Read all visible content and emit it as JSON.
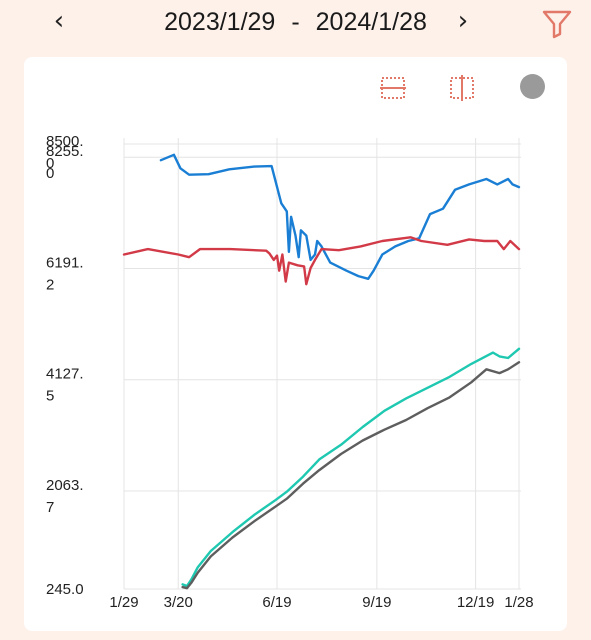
{
  "header": {
    "start_date": "2023/1/29",
    "separator": "-",
    "end_date": "2024/1/28",
    "prev_icon": "chevron-left-icon",
    "next_icon": "chevron-right-icon",
    "filter_icon": "filter-icon"
  },
  "toolbar": {
    "horizontal_tool_icon": "horizontal-crosshair-icon",
    "vertical_tool_icon": "vertical-crosshair-icon",
    "more_icon": "circle-icon"
  },
  "colors": {
    "accent": "#e27868",
    "blue": "#1a7fd4",
    "red": "#d23a48",
    "teal": "#1fc8b1",
    "gray": "#5e5e5e",
    "background": "#fdf1ea"
  },
  "chart_data": {
    "type": "line",
    "grid": true,
    "y_ticks": [
      {
        "line1": "245.0",
        "line2": "",
        "value": 245.0
      },
      {
        "line1": "2063.",
        "line2": "7",
        "value": 2063.7
      },
      {
        "line1": "4127.",
        "line2": "5",
        "value": 4127.5
      },
      {
        "line1": "6191.",
        "line2": "2",
        "value": 6191.2
      },
      {
        "line1": "8255.",
        "line2": "0",
        "value": 8255.0
      },
      {
        "line1": "8500.",
        "line2": "0",
        "value": 8500.0
      }
    ],
    "ylim": [
      245.0,
      8500.0
    ],
    "x_ticks": [
      {
        "label": "1/29",
        "day": 0
      },
      {
        "label": "3/20",
        "day": 50
      },
      {
        "label": "6/19",
        "day": 141
      },
      {
        "label": "9/19",
        "day": 233
      },
      {
        "label": "12/19",
        "day": 324
      },
      {
        "label": "1/28",
        "day": 364
      }
    ],
    "xlim": [
      0,
      364
    ],
    "series": [
      {
        "color": "#1a7fd4",
        "points": [
          [
            34,
            8200
          ],
          [
            46,
            8300
          ],
          [
            52,
            8050
          ],
          [
            60,
            7930
          ],
          [
            78,
            7940
          ],
          [
            97,
            8030
          ],
          [
            120,
            8080
          ],
          [
            136,
            8090
          ],
          [
            145,
            7400
          ],
          [
            150,
            7250
          ],
          [
            152,
            6500
          ],
          [
            154,
            7150
          ],
          [
            158,
            6800
          ],
          [
            161,
            6400
          ],
          [
            163,
            6900
          ],
          [
            168,
            6800
          ],
          [
            172,
            6350
          ],
          [
            176,
            6450
          ],
          [
            178,
            6700
          ],
          [
            182,
            6600
          ],
          [
            190,
            6300
          ],
          [
            205,
            6150
          ],
          [
            216,
            6050
          ],
          [
            225,
            6000
          ],
          [
            230,
            6150
          ],
          [
            238,
            6450
          ],
          [
            250,
            6600
          ],
          [
            262,
            6700
          ],
          [
            272,
            6750
          ],
          [
            282,
            7200
          ],
          [
            294,
            7300
          ],
          [
            305,
            7650
          ],
          [
            318,
            7750
          ],
          [
            334,
            7850
          ],
          [
            344,
            7750
          ],
          [
            354,
            7850
          ],
          [
            358,
            7750
          ],
          [
            364,
            7700
          ]
        ]
      },
      {
        "color": "#d23a48",
        "points": [
          [
            0,
            6450
          ],
          [
            22,
            6550
          ],
          [
            50,
            6450
          ],
          [
            60,
            6400
          ],
          [
            70,
            6550
          ],
          [
            98,
            6550
          ],
          [
            131,
            6520
          ],
          [
            134,
            6470
          ],
          [
            138,
            6350
          ],
          [
            141,
            6430
          ],
          [
            143,
            6150
          ],
          [
            146,
            6450
          ],
          [
            149,
            5950
          ],
          [
            152,
            6300
          ],
          [
            160,
            6250
          ],
          [
            166,
            6230
          ],
          [
            168,
            5900
          ],
          [
            172,
            6200
          ],
          [
            176,
            6350
          ],
          [
            182,
            6550
          ],
          [
            198,
            6530
          ],
          [
            218,
            6600
          ],
          [
            238,
            6700
          ],
          [
            264,
            6770
          ],
          [
            274,
            6700
          ],
          [
            298,
            6630
          ],
          [
            318,
            6730
          ],
          [
            332,
            6700
          ],
          [
            344,
            6700
          ],
          [
            350,
            6550
          ],
          [
            356,
            6700
          ],
          [
            364,
            6550
          ]
        ]
      },
      {
        "color": "#1fc8b1",
        "points": [
          [
            54,
            330
          ],
          [
            58,
            300
          ],
          [
            62,
            420
          ],
          [
            68,
            650
          ],
          [
            80,
            950
          ],
          [
            100,
            1300
          ],
          [
            120,
            1620
          ],
          [
            140,
            1900
          ],
          [
            150,
            2050
          ],
          [
            165,
            2330
          ],
          [
            180,
            2650
          ],
          [
            200,
            2920
          ],
          [
            220,
            3250
          ],
          [
            240,
            3550
          ],
          [
            260,
            3780
          ],
          [
            280,
            3980
          ],
          [
            300,
            4180
          ],
          [
            320,
            4420
          ],
          [
            340,
            4630
          ],
          [
            346,
            4560
          ],
          [
            354,
            4530
          ],
          [
            364,
            4700
          ]
        ]
      },
      {
        "color": "#5e5e5e",
        "points": [
          [
            54,
            280
          ],
          [
            58,
            260
          ],
          [
            62,
            360
          ],
          [
            68,
            550
          ],
          [
            80,
            850
          ],
          [
            100,
            1200
          ],
          [
            120,
            1500
          ],
          [
            140,
            1780
          ],
          [
            150,
            1920
          ],
          [
            165,
            2200
          ],
          [
            180,
            2450
          ],
          [
            200,
            2750
          ],
          [
            220,
            3000
          ],
          [
            240,
            3200
          ],
          [
            260,
            3380
          ],
          [
            280,
            3600
          ],
          [
            300,
            3800
          ],
          [
            320,
            4080
          ],
          [
            334,
            4320
          ],
          [
            346,
            4250
          ],
          [
            354,
            4320
          ],
          [
            364,
            4450
          ]
        ]
      }
    ]
  }
}
